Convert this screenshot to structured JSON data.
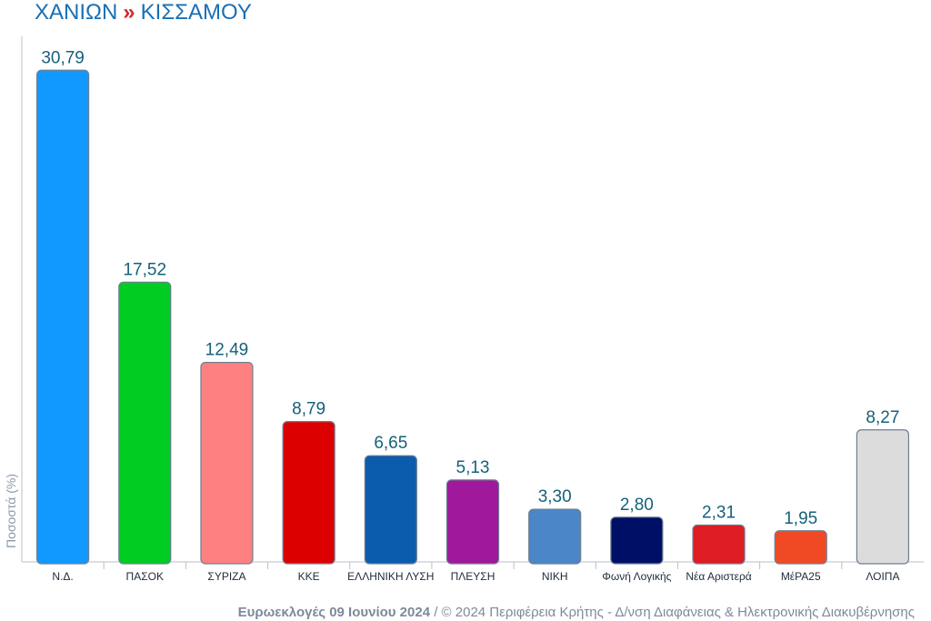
{
  "header": {
    "region": "ΧΑΝΙΩΝ",
    "separator": "»",
    "municipality": "ΚΙΣΣΑΜΟΥ"
  },
  "footer": {
    "event": "Ευρωεκλογές 09 Ιουνίου 2024",
    "credit": " / © 2024 Περιφέρεια Κρήτης - Δ/νση Διαφάνειας & Ηλεκτρονικής Διακυβέρνησης"
  },
  "chart_data": {
    "type": "bar",
    "title": "",
    "xlabel": "",
    "ylabel": "Ποσοστά (%)",
    "ylim": [
      0,
      32
    ],
    "grid": false,
    "categories": [
      "Ν.Δ.",
      "ΠΑΣΟΚ",
      "ΣΥΡΙΖΑ",
      "ΚΚΕ",
      "ΕΛΛΗΝΙΚΗ ΛΥΣΗ",
      "ΠΛΕΥΣΗ",
      "ΝΙΚΗ",
      "Φωνή Λογικής",
      "Νέα Αριστερά",
      "ΜέΡΑ25",
      "ΛΟΙΠΑ"
    ],
    "values": [
      30.79,
      17.52,
      12.49,
      8.79,
      6.65,
      5.13,
      3.3,
      2.8,
      2.31,
      1.95,
      8.27
    ],
    "value_labels": [
      "30,79",
      "17,52",
      "12,49",
      "8,79",
      "6,65",
      "5,13",
      "3,30",
      "2,80",
      "2,31",
      "1,95",
      "8,27"
    ],
    "colors": [
      "#1199ff",
      "#00cc22",
      "#ff8080",
      "#dd0000",
      "#0b5cad",
      "#a0189b",
      "#4a86c8",
      "#000f66",
      "#dd1c23",
      "#f04a24",
      "#dcdcdc"
    ]
  }
}
